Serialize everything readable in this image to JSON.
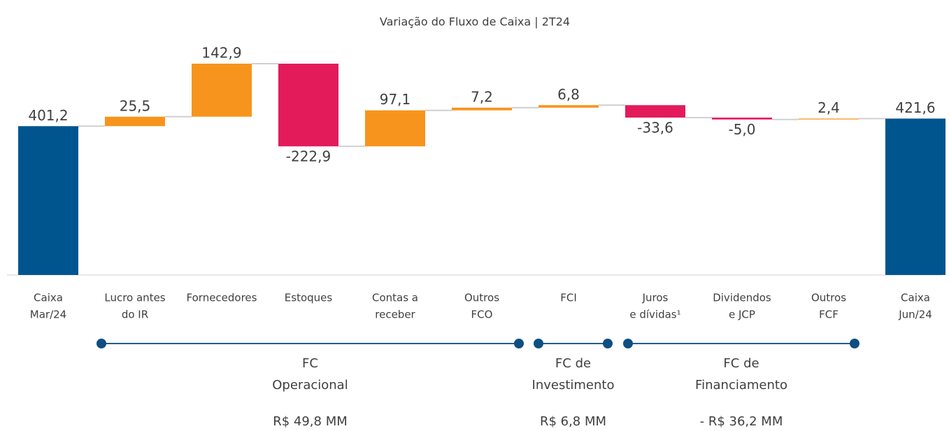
{
  "chart_data": {
    "type": "waterfall",
    "title": "Variação do Fluxo de Caixa | 2T24",
    "categories": [
      [
        "Caixa",
        "Mar/24"
      ],
      [
        "Lucro antes",
        "do IR"
      ],
      [
        "Fornecedores"
      ],
      [
        "Estoques"
      ],
      [
        "Contas a",
        "receber"
      ],
      [
        "Outros",
        "FCO"
      ],
      [
        "FCI"
      ],
      [
        "Juros",
        "e dívidas¹"
      ],
      [
        "Dividendos",
        "e JCP"
      ],
      [
        "Outros",
        "FCF"
      ],
      [
        "Caixa",
        "Jun/24"
      ]
    ],
    "values": [
      401.2,
      25.5,
      142.9,
      -222.9,
      97.1,
      7.2,
      6.8,
      -33.6,
      -5.0,
      2.4,
      421.6
    ],
    "value_labels": [
      "401,2",
      "25,5",
      "142,9",
      "-222,9",
      "97,1",
      "7,2",
      "6,8",
      "-33,6",
      "-5,0",
      "2,4",
      "421,6"
    ],
    "colors": {
      "total": "#00558f",
      "increase": "#f7941d",
      "decrease": "#e31b5b"
    },
    "groups": [
      {
        "label": [
          "FC",
          "Operacional"
        ],
        "total": "R$ 49,8 MM"
      },
      {
        "label": [
          "FC de",
          "Investimento"
        ],
        "total": "R$ 6,8 MM"
      },
      {
        "label": [
          "FC de",
          "Financiamento"
        ],
        "total": "- R$ 36,2 MM"
      }
    ]
  }
}
